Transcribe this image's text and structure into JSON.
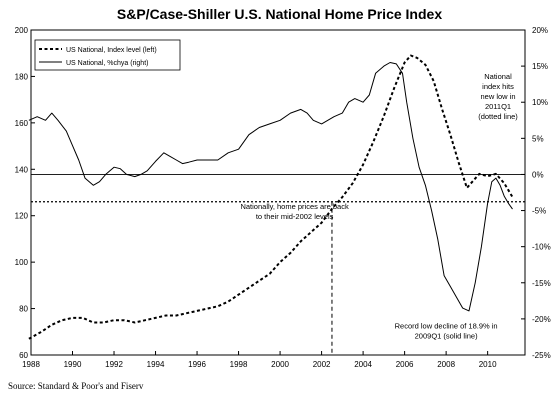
{
  "chart_data": {
    "type": "line",
    "title": "S&P/Case-Shiller U.S. National Home Price Index",
    "source": "Source: Standard & Poor's and Fiserv",
    "legend": {
      "placement": "top-left",
      "entries": [
        "US National, Index level (left)",
        "US National, %chya (right)"
      ]
    },
    "x_ticks": [
      "1988",
      "1990",
      "1992",
      "1994",
      "1996",
      "1998",
      "2000",
      "2002",
      "2004",
      "2006",
      "2008",
      "2010"
    ],
    "xlim": [
      1988,
      2011.8
    ],
    "y_left": {
      "ylim": [
        60,
        200
      ],
      "ticks": [
        "60",
        "80",
        "100",
        "120",
        "140",
        "160",
        "180",
        "200"
      ]
    },
    "y_right": {
      "ylim": [
        -25,
        20
      ],
      "ticks": [
        "-25%",
        "-20%",
        "-15%",
        "-10%",
        "-5%",
        "0%",
        "5%",
        "10%",
        "15%",
        "20%"
      ]
    },
    "grid": false,
    "series": [
      {
        "name": "US National, Index level (left)",
        "axis": "left",
        "style": "dashed",
        "points": [
          [
            1987.9,
            67
          ],
          [
            1988.5,
            70
          ],
          [
            1989,
            73
          ],
          [
            1989.5,
            75
          ],
          [
            1990,
            76
          ],
          [
            1990.5,
            76
          ],
          [
            1991,
            74
          ],
          [
            1991.5,
            74
          ],
          [
            1992,
            75
          ],
          [
            1992.5,
            75
          ],
          [
            1993,
            74
          ],
          [
            1993.5,
            75
          ],
          [
            1994,
            76
          ],
          [
            1994.5,
            77
          ],
          [
            1995,
            77
          ],
          [
            1995.5,
            78
          ],
          [
            1996,
            79
          ],
          [
            1996.5,
            80
          ],
          [
            1997,
            81
          ],
          [
            1997.5,
            83
          ],
          [
            1998,
            86
          ],
          [
            1998.5,
            89
          ],
          [
            1999,
            92
          ],
          [
            1999.5,
            95
          ],
          [
            2000,
            100
          ],
          [
            2000.5,
            104
          ],
          [
            2001,
            109
          ],
          [
            2001.5,
            113
          ],
          [
            2002,
            117
          ],
          [
            2002.5,
            123
          ],
          [
            2003,
            128
          ],
          [
            2003.5,
            134
          ],
          [
            2004,
            142
          ],
          [
            2004.5,
            152
          ],
          [
            2005,
            163
          ],
          [
            2005.5,
            175
          ],
          [
            2006,
            186
          ],
          [
            2006.3,
            189
          ],
          [
            2006.6,
            188
          ],
          [
            2007,
            185
          ],
          [
            2007.4,
            178
          ],
          [
            2007.8,
            166
          ],
          [
            2008.2,
            155
          ],
          [
            2008.6,
            143
          ],
          [
            2009,
            132
          ],
          [
            2009.3,
            135
          ],
          [
            2009.6,
            138
          ],
          [
            2010,
            137
          ],
          [
            2010.4,
            138
          ],
          [
            2010.8,
            134
          ],
          [
            2011,
            131
          ],
          [
            2011.2,
            128
          ]
        ]
      },
      {
        "name": "US National, %chya (right)",
        "axis": "right",
        "style": "solid",
        "points": [
          [
            1987.9,
            7.5
          ],
          [
            1988.3,
            8
          ],
          [
            1988.7,
            7.5
          ],
          [
            1989,
            8.5
          ],
          [
            1989.3,
            7.5
          ],
          [
            1989.7,
            6
          ],
          [
            1990,
            4
          ],
          [
            1990.3,
            2
          ],
          [
            1990.6,
            -0.5
          ],
          [
            1991,
            -1.5
          ],
          [
            1991.3,
            -1
          ],
          [
            1991.6,
            0
          ],
          [
            1992,
            1
          ],
          [
            1992.3,
            0.8
          ],
          [
            1992.6,
            0
          ],
          [
            1993,
            -0.3
          ],
          [
            1993.3,
            0
          ],
          [
            1993.6,
            0.5
          ],
          [
            1994,
            1.8
          ],
          [
            1994.4,
            3
          ],
          [
            1994.7,
            2.5
          ],
          [
            1995,
            2
          ],
          [
            1995.3,
            1.5
          ],
          [
            1995.6,
            1.7
          ],
          [
            1996,
            2
          ],
          [
            1996.5,
            2
          ],
          [
            1997,
            2
          ],
          [
            1997.5,
            3
          ],
          [
            1998,
            3.5
          ],
          [
            1998.5,
            5.5
          ],
          [
            1999,
            6.5
          ],
          [
            1999.5,
            7
          ],
          [
            2000,
            7.5
          ],
          [
            2000.5,
            8.5
          ],
          [
            2001,
            9
          ],
          [
            2001.3,
            8.5
          ],
          [
            2001.6,
            7.5
          ],
          [
            2002,
            7
          ],
          [
            2002.3,
            7.5
          ],
          [
            2002.6,
            8
          ],
          [
            2003,
            8.5
          ],
          [
            2003.3,
            10
          ],
          [
            2003.6,
            10.5
          ],
          [
            2004,
            10
          ],
          [
            2004.3,
            11
          ],
          [
            2004.6,
            14
          ],
          [
            2005,
            15
          ],
          [
            2005.3,
            15.5
          ],
          [
            2005.6,
            15.3
          ],
          [
            2005.9,
            14
          ],
          [
            2006.1,
            10
          ],
          [
            2006.4,
            5
          ],
          [
            2006.7,
            1
          ],
          [
            2007,
            -1.5
          ],
          [
            2007.3,
            -5
          ],
          [
            2007.6,
            -9
          ],
          [
            2007.9,
            -14
          ],
          [
            2008.2,
            -15.5
          ],
          [
            2008.5,
            -17
          ],
          [
            2008.8,
            -18.5
          ],
          [
            2009.1,
            -18.9
          ],
          [
            2009.4,
            -15
          ],
          [
            2009.7,
            -10
          ],
          [
            2010,
            -4
          ],
          [
            2010.2,
            -1
          ],
          [
            2010.4,
            -0.5
          ],
          [
            2010.6,
            -1.5
          ],
          [
            2010.8,
            -3
          ],
          [
            2011,
            -4
          ],
          [
            2011.2,
            -4.8
          ]
        ]
      }
    ],
    "reference_lines": [
      {
        "type": "horizontal",
        "axis": "right",
        "value": 0,
        "style": "solid"
      },
      {
        "type": "horizontal",
        "axis": "left",
        "value": 126,
        "style": "dotted"
      },
      {
        "type": "vertical",
        "x": 2002.5,
        "style": "dashed"
      }
    ],
    "annotations": [
      {
        "text": [
          "Nationally, home prices are back",
          "to their mid-2002 levels"
        ],
        "x": 2000.7,
        "y": 123,
        "axis": "left",
        "align": "middle"
      },
      {
        "text": [
          "National",
          "index hits",
          "new low in",
          "2011Q1",
          "(dotted line)"
        ],
        "x": 2010.5,
        "y": 179,
        "axis": "left",
        "align": "middle"
      },
      {
        "text": [
          "Record low decline of 18.9% in",
          "2009Q1 (solid line)"
        ],
        "x": 2008.0,
        "y": -21.3,
        "axis": "right",
        "align": "middle"
      }
    ]
  }
}
